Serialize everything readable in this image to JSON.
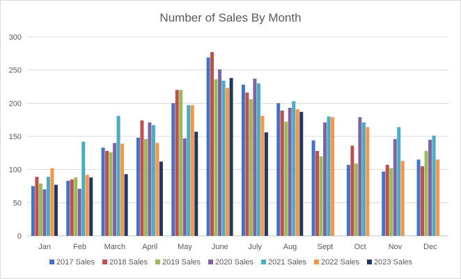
{
  "chart_data": {
    "type": "bar",
    "title": "Number of Sales By Month",
    "xlabel": "",
    "ylabel": "",
    "ylim": [
      0,
      300
    ],
    "yticks": [
      0,
      50,
      100,
      150,
      200,
      250,
      300
    ],
    "grid": "horizontal",
    "legend_position": "bottom",
    "categories": [
      "Jan",
      "Feb",
      "March",
      "April",
      "May",
      "June",
      "July",
      "Aug",
      "Sept",
      "Oct",
      "Nov",
      "Dec"
    ],
    "series": [
      {
        "name": "2017 Sales",
        "color": "#4472c4",
        "values": [
          75,
          83,
          133,
          148,
          200,
          269,
          228,
          200,
          144,
          107,
          97,
          115
        ]
      },
      {
        "name": "2018 Sales",
        "color": "#c0504d",
        "values": [
          89,
          85,
          128,
          174,
          220,
          277,
          216,
          189,
          128,
          136,
          107,
          105
        ]
      },
      {
        "name": "2019 Sales",
        "color": "#9bbb59",
        "values": [
          79,
          88,
          126,
          146,
          220,
          236,
          206,
          172,
          120,
          109,
          102,
          128
        ]
      },
      {
        "name": "2020 Sales",
        "color": "#8064a2",
        "values": [
          70,
          71,
          140,
          171,
          147,
          251,
          237,
          193,
          171,
          179,
          146,
          145
        ]
      },
      {
        "name": "2021 Sales",
        "color": "#4bacc6",
        "values": [
          89,
          142,
          181,
          167,
          197,
          234,
          230,
          203,
          180,
          171,
          164,
          151
        ]
      },
      {
        "name": "2022 Sales",
        "color": "#f79646",
        "values": [
          102,
          92,
          139,
          140,
          197,
          223,
          181,
          191,
          179,
          164,
          113,
          115
        ]
      },
      {
        "name": "2023 Sales",
        "color": "#1f3864",
        "values": [
          77,
          88,
          93,
          112,
          157,
          238,
          156,
          187,
          null,
          null,
          null,
          null
        ]
      }
    ]
  }
}
